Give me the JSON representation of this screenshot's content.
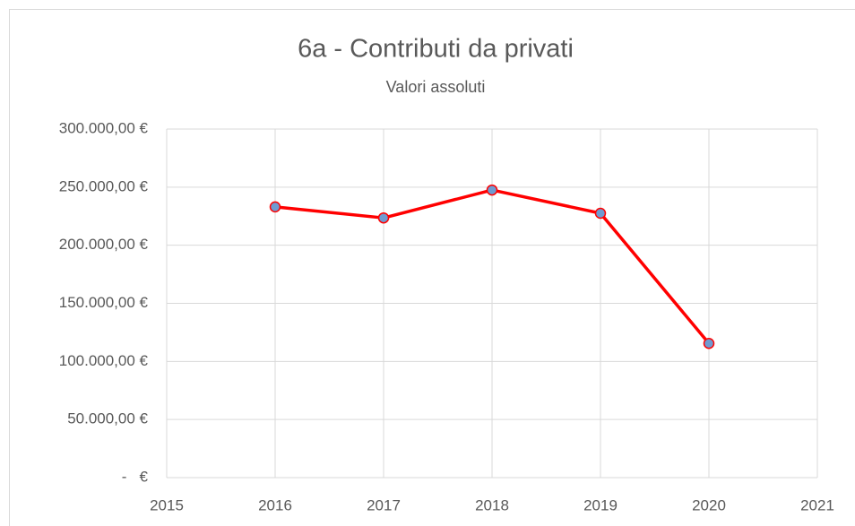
{
  "chart_data": {
    "type": "line",
    "title": "6a - Contributi da privati",
    "subtitle": "Valori assoluti",
    "x": [
      2016,
      2017,
      2018,
      2019,
      2020
    ],
    "series": [
      {
        "color": "#ff0000",
        "marker_fill": "#6f9bd1",
        "values": [
          233000,
          223500,
          247500,
          227500,
          115500
        ]
      }
    ],
    "xlim": [
      2015,
      2021
    ],
    "xticks": [
      2015,
      2016,
      2017,
      2018,
      2019,
      2020,
      2021
    ],
    "ylim": [
      0,
      300000
    ],
    "yticks": [
      {
        "value": 0,
        "label": "-   €"
      },
      {
        "value": 50000,
        "label": "50.000,00 €"
      },
      {
        "value": 100000,
        "label": "100.000,00 €"
      },
      {
        "value": 150000,
        "label": "150.000,00 €"
      },
      {
        "value": 200000,
        "label": "200.000,00 €"
      },
      {
        "value": 250000,
        "label": "250.000,00 €"
      },
      {
        "value": 300000,
        "label": "300.000,00 €"
      }
    ],
    "grid": true
  }
}
